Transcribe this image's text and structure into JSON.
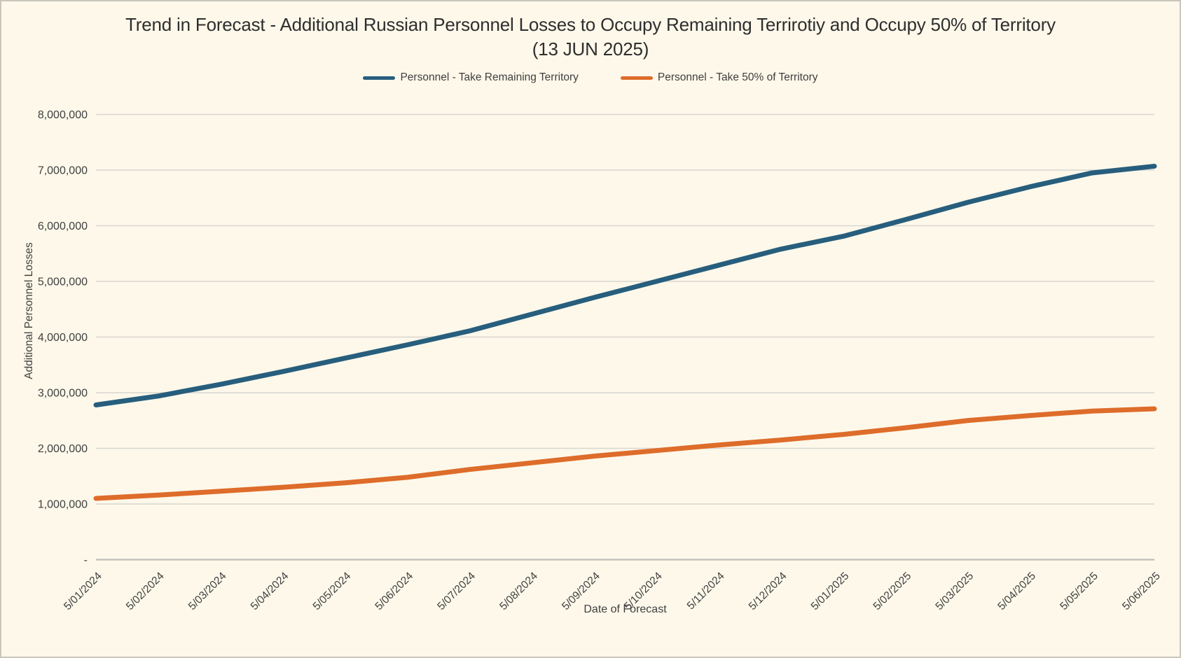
{
  "title": {
    "line1": "Trend in Forecast - Additional Russian Personnel Losses to Occupy Remaining Terrirotiy and Occupy 50% of Territory",
    "line2": "(13 JUN 2025)"
  },
  "chart_data": {
    "type": "line",
    "title": "Trend in Forecast - Additional Russian Personnel Losses to Occupy Remaining Terrirotiy and Occupy 50% of Territory (13 JUN 2025)",
    "xlabel": "Date of Forecast",
    "ylabel": "Additional Personnel Losses",
    "x": [
      "5/01/2024",
      "5/02/2024",
      "5/03/2024",
      "5/04/2024",
      "5/05/2024",
      "5/06/2024",
      "5/07/2024",
      "5/08/2024",
      "5/09/2024",
      "5/10/2024",
      "5/11/2024",
      "5/12/2024",
      "5/01/2025",
      "5/02/2025",
      "5/03/2025",
      "5/04/2025",
      "5/05/2025",
      "5/06/2025"
    ],
    "series": [
      {
        "name": "Personnel - Take Remaining Territory",
        "color": "#275E7D",
        "values": [
          2780000,
          2940000,
          3150000,
          3380000,
          3620000,
          3860000,
          4110000,
          4410000,
          4710000,
          5000000,
          5290000,
          5580000,
          5810000,
          6110000,
          6420000,
          6700000,
          6950000,
          7070000
        ]
      },
      {
        "name": "Personnel - Take 50% of Territory",
        "color": "#DE6C2A",
        "values": [
          1100000,
          1160000,
          1230000,
          1300000,
          1380000,
          1480000,
          1620000,
          1740000,
          1860000,
          1960000,
          2060000,
          2150000,
          2250000,
          2370000,
          2500000,
          2590000,
          2670000,
          2710000
        ]
      }
    ],
    "ylim": [
      0,
      8000000
    ],
    "ytick_interval": 1000000,
    "ytick_labels": [
      "-",
      "1,000,000",
      "2,000,000",
      "3,000,000",
      "4,000,000",
      "5,000,000",
      "6,000,000",
      "7,000,000",
      "8,000,000"
    ],
    "grid": true,
    "legend_position": "top"
  },
  "colors": {
    "background": "#FDF8EA",
    "gridline": "#D8D6D0",
    "axis_line": "#BFBDB6",
    "text": "#3F3F3F",
    "title_text": "#2E2E2E",
    "series_blue": "#275E7D",
    "series_orange": "#DE6C2A"
  }
}
